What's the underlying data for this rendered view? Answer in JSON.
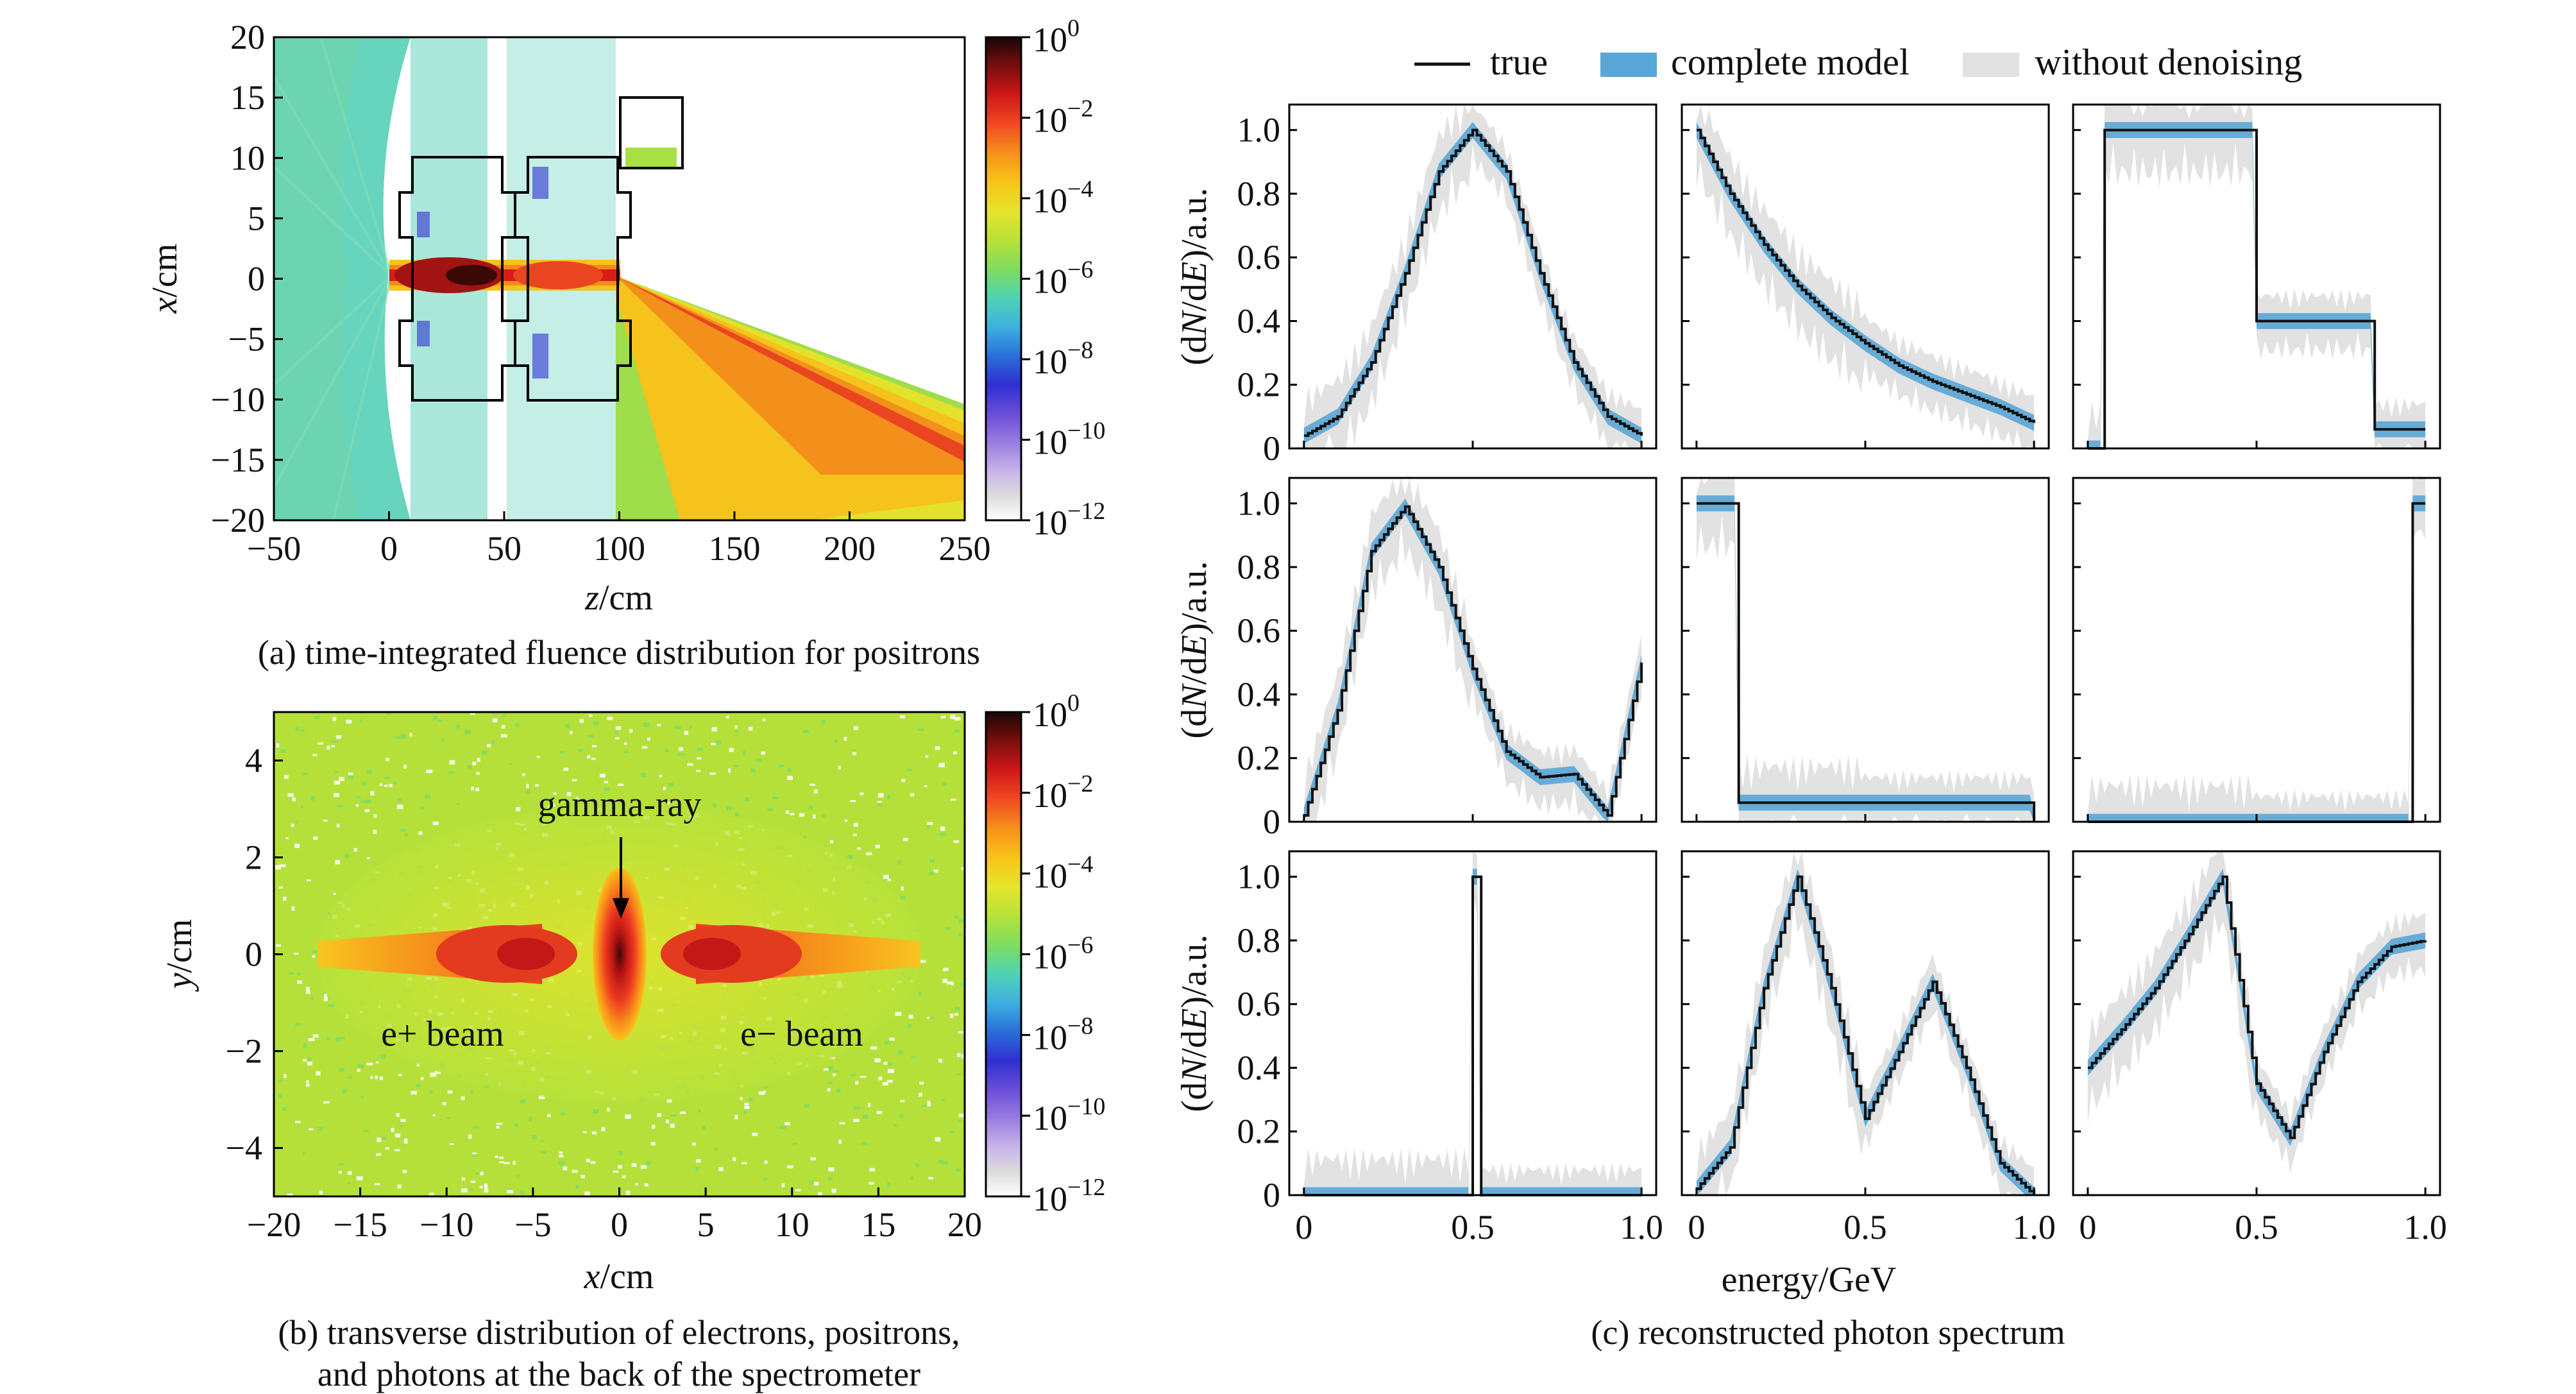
{
  "colors": {
    "true_line": "#111111",
    "complete_fill": "#5aa6d6",
    "without_fill": "#e2e2e2",
    "cmap": [
      "#ffffff",
      "#dcdcdc",
      "#c9b6e8",
      "#9a7de0",
      "#6a4ed8",
      "#2f2fd0",
      "#2a6fd8",
      "#3fb0e0",
      "#4fd3b4",
      "#7fdc5e",
      "#b8e23a",
      "#e5e42a",
      "#f9c419",
      "#f7901c",
      "#f04a22",
      "#d01818",
      "#7a0e0e",
      "#1a0606"
    ]
  },
  "panel_a": {
    "caption": "(a) time-integrated fluence distribution for positrons",
    "xlabel_var": "z",
    "xlabel_unit": "/cm",
    "ylabel_var": "x",
    "ylabel_unit": "/cm",
    "xticks": [
      "−50",
      "0",
      "50",
      "100",
      "150",
      "200",
      "250"
    ],
    "yticks": [
      "20",
      "15",
      "10",
      "5",
      "0",
      "−5",
      "−10",
      "−15",
      "−20"
    ],
    "xlim": [
      -50,
      250
    ],
    "ylim": [
      -20,
      20
    ]
  },
  "panel_b": {
    "caption_line1": "(b) transverse distribution of electrons, positrons,",
    "caption_line2": "and photons at the back of the spectrometer",
    "xlabel_var": "x",
    "xlabel_unit": "/cm",
    "ylabel_var": "y",
    "ylabel_unit": "/cm",
    "xticks": [
      "−20",
      "−15",
      "−10",
      "−5",
      "0",
      "5",
      "10",
      "15",
      "20"
    ],
    "yticks": [
      "4",
      "2",
      "0",
      "−2",
      "−4"
    ],
    "annotations": {
      "gamma": "gamma-ray",
      "positron": "e+ beam",
      "electron": "e− beam"
    }
  },
  "colorbar": {
    "base": "10",
    "exponents": [
      "0",
      "−2",
      "−4",
      "−6",
      "−8",
      "−10",
      "−12"
    ]
  },
  "panel_c": {
    "caption": "(c) reconstructed photon spectrum",
    "xlabel": "energy/GeV",
    "ylabel_pre": "(d",
    "ylabel_n": "N",
    "ylabel_mid": "/d",
    "ylabel_e": "E",
    "ylabel_post": ")/a.u.",
    "yticks": [
      "0",
      "0.2",
      "0.4",
      "0.6",
      "0.8",
      "1.0"
    ],
    "xticks": [
      "0",
      "0.5",
      "1.0"
    ],
    "legend": {
      "true": "true",
      "complete": "complete model",
      "without": "without denoising"
    }
  },
  "chart_data": [
    {
      "type": "heatmap",
      "title": "(a) time-integrated fluence distribution for positrons",
      "xlabel": "z/cm",
      "ylabel": "x/cm",
      "xlim": [
        -50,
        250
      ],
      "ylim": [
        -20,
        20
      ],
      "colorbar_range": [
        "1e-12",
        "1e0"
      ],
      "structures": [
        {
          "z0": 10,
          "z1": 60,
          "x0": -10,
          "x1": 10
        },
        {
          "z0": 60,
          "z1": 100,
          "x0": -10,
          "x1": 10
        },
        {
          "z0": 100,
          "z1": 125,
          "x0": 10,
          "x1": 15
        }
      ]
    },
    {
      "type": "heatmap",
      "title": "(b) transverse distribution of electrons, positrons, and photons at the back of the spectrometer",
      "xlabel": "x/cm",
      "ylabel": "y/cm",
      "xlim": [
        -20,
        20
      ],
      "ylim": [
        -5,
        5
      ],
      "colorbar_range": [
        "1e-12",
        "1e0"
      ],
      "spots": [
        {
          "label": "e+ beam",
          "x": -5,
          "y": 0
        },
        {
          "label": "gamma-ray",
          "x": 0,
          "y": 0
        },
        {
          "label": "e− beam",
          "x": 5,
          "y": 0
        }
      ]
    },
    {
      "type": "line",
      "title": "(c) reconstructed photon spectrum",
      "xlabel": "energy/GeV",
      "ylabel": "(dN/dE)/a.u.",
      "xlim": [
        0,
        1
      ],
      "ylim": [
        0,
        1.05
      ],
      "series_names": [
        "true",
        "complete model",
        "without denoising"
      ],
      "panels": [
        {
          "shape": "gaussian",
          "x": [
            0,
            0.1,
            0.2,
            0.3,
            0.4,
            0.5,
            0.6,
            0.7,
            0.8,
            0.9,
            1.0
          ],
          "true": [
            0.04,
            0.1,
            0.27,
            0.55,
            0.87,
            1.0,
            0.87,
            0.55,
            0.27,
            0.1,
            0.04
          ]
        },
        {
          "shape": "exponential",
          "x": [
            0,
            0.1,
            0.2,
            0.3,
            0.4,
            0.5,
            0.6,
            0.7,
            0.8,
            0.9,
            1.0
          ],
          "true": [
            1.0,
            0.8,
            0.64,
            0.51,
            0.41,
            0.33,
            0.26,
            0.21,
            0.17,
            0.13,
            0.08
          ]
        },
        {
          "shape": "step",
          "x": [
            0,
            0.05,
            0.5,
            0.85,
            1.0
          ],
          "true": [
            0,
            1.0,
            0.4,
            0.06,
            0.06
          ]
        },
        {
          "shape": "peak+rise",
          "x": [
            0,
            0.1,
            0.2,
            0.3,
            0.4,
            0.5,
            0.6,
            0.7,
            0.8,
            0.9,
            1.0
          ],
          "true": [
            0.02,
            0.35,
            0.85,
            0.99,
            0.8,
            0.48,
            0.22,
            0.14,
            0.15,
            0.02,
            0.5
          ]
        },
        {
          "shape": "step",
          "x": [
            0,
            0.1,
            0.12,
            0.9,
            1.0
          ],
          "true": [
            1.0,
            1.0,
            0.06,
            0.06,
            0.0
          ]
        },
        {
          "shape": "edge",
          "x": [
            0,
            0.95,
            0.96,
            1.0
          ],
          "true": [
            0.0,
            0.0,
            1.0,
            1.0
          ]
        },
        {
          "shape": "line",
          "x": [
            0,
            0.5,
            0.52,
            1.0
          ],
          "true": [
            0.0,
            1.0,
            0.0,
            0.0
          ]
        },
        {
          "shape": "double-peak",
          "x": [
            0,
            0.1,
            0.2,
            0.3,
            0.4,
            0.5,
            0.6,
            0.7,
            0.8,
            0.9,
            1.0
          ],
          "true": [
            0.02,
            0.15,
            0.65,
            1.0,
            0.65,
            0.24,
            0.45,
            0.67,
            0.4,
            0.1,
            0.0
          ]
        },
        {
          "shape": "peak-dip",
          "x": [
            0,
            0.1,
            0.2,
            0.3,
            0.4,
            0.5,
            0.6,
            0.7,
            0.8,
            0.9,
            1.0
          ],
          "true": [
            0.4,
            0.52,
            0.65,
            0.82,
            1.0,
            0.35,
            0.18,
            0.45,
            0.67,
            0.78,
            0.8
          ]
        }
      ]
    }
  ]
}
